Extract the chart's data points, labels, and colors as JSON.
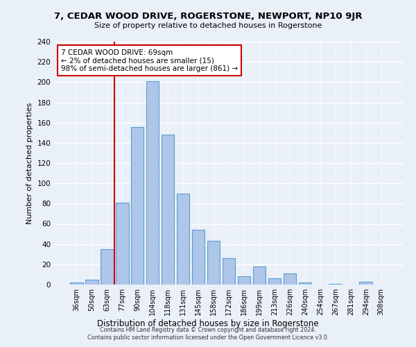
{
  "title": "7, CEDAR WOOD DRIVE, ROGERSTONE, NEWPORT, NP10 9JR",
  "subtitle": "Size of property relative to detached houses in Rogerstone",
  "xlabel": "Distribution of detached houses by size in Rogerstone",
  "ylabel": "Number of detached properties",
  "categories": [
    "36sqm",
    "50sqm",
    "63sqm",
    "77sqm",
    "90sqm",
    "104sqm",
    "118sqm",
    "131sqm",
    "145sqm",
    "158sqm",
    "172sqm",
    "186sqm",
    "199sqm",
    "213sqm",
    "226sqm",
    "240sqm",
    "254sqm",
    "267sqm",
    "281sqm",
    "294sqm",
    "308sqm"
  ],
  "bar_values": [
    2,
    5,
    35,
    81,
    156,
    201,
    148,
    90,
    54,
    43,
    26,
    8,
    18,
    6,
    11,
    2,
    0,
    1,
    0,
    3,
    0
  ],
  "bar_color": "#aec6e8",
  "bar_edge_color": "#5a9fd4",
  "property_sqm": 69,
  "annotation_title": "7 CEDAR WOOD DRIVE: 69sqm",
  "annotation_line1": "← 2% of detached houses are smaller (15)",
  "annotation_line2": "98% of semi-detached houses are larger (861) →",
  "annotation_box_color": "#ffffff",
  "annotation_box_edge_color": "#cc0000",
  "vline_color": "#cc0000",
  "vline_x": 2.5,
  "ylim": [
    0,
    240
  ],
  "yticks": [
    0,
    20,
    40,
    60,
    80,
    100,
    120,
    140,
    160,
    180,
    200,
    220,
    240
  ],
  "footer1": "Contains HM Land Registry data © Crown copyright and database right 2024.",
  "footer2": "Contains public sector information licensed under the Open Government Licence v3.0.",
  "bg_color": "#eaf0f8",
  "plot_bg_color": "#eaf0f8"
}
